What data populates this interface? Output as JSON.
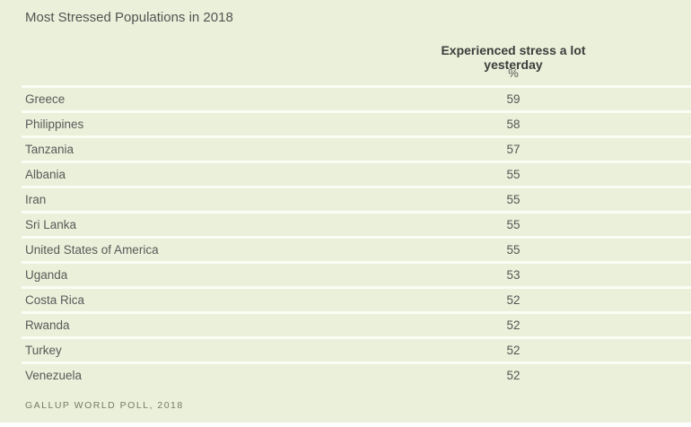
{
  "title": "Most Stressed Populations in 2018",
  "header": {
    "column_label": "Experienced stress a lot yesterday",
    "unit_label": "%"
  },
  "source": "GALLUP WORLD POLL, 2018",
  "colors": {
    "background": "#eaf0d9",
    "row_separator": "#fbfdf4",
    "title_text": "#545454",
    "header_text": "#3d3d3d",
    "body_text": "#5a5a5a",
    "source_text": "#767b6d"
  },
  "chart_data": {
    "type": "table",
    "title": "Most Stressed Populations in 2018",
    "column_header": "Experienced stress a lot yesterday",
    "unit": "%",
    "categories": [
      "Greece",
      "Philippines",
      "Tanzania",
      "Albania",
      "Iran",
      "Sri Lanka",
      "United States of America",
      "Uganda",
      "Costa Rica",
      "Rwanda",
      "Turkey",
      "Venezuela"
    ],
    "values": [
      59,
      58,
      57,
      55,
      55,
      55,
      55,
      53,
      52,
      52,
      52,
      52
    ],
    "source": "GALLUP WORLD POLL, 2018",
    "layout": {
      "value_column": "centered-right",
      "grid": "horizontal-white-separators"
    }
  }
}
